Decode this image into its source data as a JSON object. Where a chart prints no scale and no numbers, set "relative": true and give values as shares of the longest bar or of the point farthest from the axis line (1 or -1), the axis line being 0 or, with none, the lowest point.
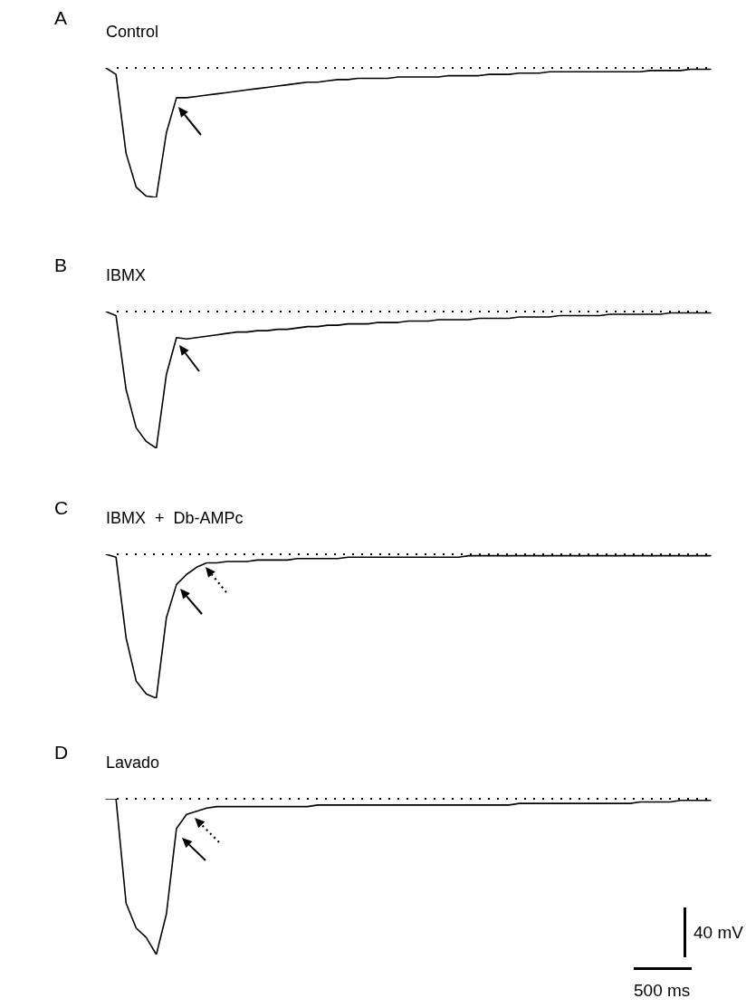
{
  "chart_data": [
    {
      "type": "line",
      "title": "A",
      "subtitle": "Control",
      "relative": true,
      "marker": "none",
      "line_style": "solid",
      "categories": [
        null,
        null,
        null,
        null,
        null,
        null,
        null,
        null,
        null,
        null,
        null,
        null,
        null,
        null,
        null,
        null,
        null,
        null,
        null,
        null,
        null,
        null,
        null,
        null,
        null,
        null,
        null,
        null,
        null,
        null,
        null,
        null,
        null,
        null,
        null,
        null,
        null,
        null,
        null,
        null,
        null,
        null,
        null,
        null,
        null,
        null,
        null,
        null,
        null,
        null,
        null,
        null,
        null,
        null,
        null,
        null,
        null,
        null,
        null,
        null,
        null
      ],
      "series": [
        {
          "color": "#000000",
          "values": [
            0,
            -0.05,
            -0.66,
            -0.92,
            -0.99,
            -1,
            -0.5,
            -0.23,
            -0.23,
            -0.22,
            -0.21,
            -0.2,
            -0.19,
            -0.18,
            -0.17,
            -0.16,
            -0.15,
            -0.14,
            -0.13,
            -0.12,
            -0.11,
            -0.11,
            -0.1,
            -0.09,
            -0.09,
            -0.08,
            -0.08,
            -0.08,
            -0.08,
            -0.07,
            -0.07,
            -0.07,
            -0.07,
            -0.07,
            -0.06,
            -0.06,
            -0.06,
            -0.06,
            -0.05,
            -0.05,
            -0.05,
            -0.04,
            -0.04,
            -0.04,
            -0.03,
            -0.03,
            -0.03,
            -0.03,
            -0.03,
            -0.03,
            -0.03,
            -0.03,
            -0.03,
            -0.03,
            -0.02,
            -0.02,
            -0.02,
            -0.02,
            -0.01,
            -0.01,
            -0.01
          ]
        }
      ],
      "ref_lines": [
        {
          "axis": "y",
          "value": 0,
          "line_style": "dotted",
          "color": "#000000"
        }
      ]
    },
    {
      "type": "line",
      "title": "B",
      "subtitle": "IBMX",
      "relative": true,
      "marker": "none",
      "line_style": "solid",
      "categories": [
        null,
        null,
        null,
        null,
        null,
        null,
        null,
        null,
        null,
        null,
        null,
        null,
        null,
        null,
        null,
        null,
        null,
        null,
        null,
        null,
        null,
        null,
        null,
        null,
        null,
        null,
        null,
        null,
        null,
        null,
        null,
        null,
        null,
        null,
        null,
        null,
        null,
        null,
        null,
        null,
        null,
        null,
        null,
        null,
        null,
        null,
        null,
        null,
        null,
        null,
        null,
        null,
        null,
        null,
        null,
        null,
        null,
        null,
        null,
        null,
        null
      ],
      "series": [
        {
          "color": "#000000",
          "values": [
            0,
            -0.03,
            -0.57,
            -0.85,
            -0.95,
            -1,
            -0.46,
            -0.19,
            -0.2,
            -0.19,
            -0.18,
            -0.17,
            -0.16,
            -0.15,
            -0.15,
            -0.14,
            -0.14,
            -0.13,
            -0.13,
            -0.12,
            -0.11,
            -0.11,
            -0.1,
            -0.1,
            -0.09,
            -0.09,
            -0.09,
            -0.08,
            -0.08,
            -0.08,
            -0.07,
            -0.07,
            -0.07,
            -0.06,
            -0.06,
            -0.06,
            -0.06,
            -0.05,
            -0.05,
            -0.05,
            -0.05,
            -0.04,
            -0.04,
            -0.04,
            -0.04,
            -0.03,
            -0.03,
            -0.03,
            -0.03,
            -0.03,
            -0.02,
            -0.02,
            -0.02,
            -0.02,
            -0.02,
            -0.02,
            -0.01,
            -0.01,
            -0.01,
            -0.01,
            -0.01
          ]
        }
      ],
      "ref_lines": [
        {
          "axis": "y",
          "value": 0,
          "line_style": "dotted",
          "color": "#000000"
        }
      ]
    },
    {
      "type": "line",
      "title": "C",
      "subtitle": "IBMX  +  Db-AMPc",
      "relative": true,
      "marker": "none",
      "line_style": "solid",
      "categories": [
        null,
        null,
        null,
        null,
        null,
        null,
        null,
        null,
        null,
        null,
        null,
        null,
        null,
        null,
        null,
        null,
        null,
        null,
        null,
        null,
        null,
        null,
        null,
        null,
        null,
        null,
        null,
        null,
        null,
        null,
        null,
        null,
        null,
        null,
        null,
        null,
        null,
        null,
        null,
        null,
        null,
        null,
        null,
        null,
        null,
        null,
        null,
        null,
        null,
        null,
        null,
        null,
        null,
        null,
        null,
        null,
        null,
        null,
        null,
        null,
        null
      ],
      "series": [
        {
          "color": "#000000",
          "values": [
            0,
            -0.02,
            -0.58,
            -0.88,
            -0.97,
            -1,
            -0.44,
            -0.21,
            -0.14,
            -0.09,
            -0.06,
            -0.06,
            -0.05,
            -0.05,
            -0.05,
            -0.04,
            -0.04,
            -0.04,
            -0.04,
            -0.03,
            -0.03,
            -0.03,
            -0.03,
            -0.03,
            -0.02,
            -0.02,
            -0.02,
            -0.02,
            -0.02,
            -0.02,
            -0.02,
            -0.02,
            -0.02,
            -0.02,
            -0.02,
            -0.02,
            -0.01,
            -0.01,
            -0.01,
            -0.01,
            -0.01,
            -0.01,
            -0.01,
            -0.01,
            -0.01,
            -0.01,
            -0.01,
            -0.01,
            -0.01,
            -0.01,
            -0.01,
            -0.01,
            -0.01,
            -0.01,
            -0.01,
            -0.01,
            -0.01,
            -0.01,
            -0.01,
            -0.01,
            -0.01
          ]
        }
      ],
      "ref_lines": [
        {
          "axis": "y",
          "value": 0,
          "line_style": "dotted",
          "color": "#000000"
        }
      ]
    },
    {
      "type": "line",
      "title": "D",
      "subtitle": "Lavado",
      "relative": true,
      "marker": "none",
      "line_style": "solid",
      "categories": [
        null,
        null,
        null,
        null,
        null,
        null,
        null,
        null,
        null,
        null,
        null,
        null,
        null,
        null,
        null,
        null,
        null,
        null,
        null,
        null,
        null,
        null,
        null,
        null,
        null,
        null,
        null,
        null,
        null,
        null,
        null,
        null,
        null,
        null,
        null,
        null,
        null,
        null,
        null,
        null,
        null,
        null,
        null,
        null,
        null,
        null,
        null,
        null,
        null,
        null,
        null,
        null,
        null,
        null,
        null,
        null,
        null,
        null,
        null,
        null,
        null
      ],
      "series": [
        {
          "color": "#000000",
          "values": [
            0,
            0,
            -0.67,
            -0.83,
            -0.89,
            -1,
            -0.74,
            -0.19,
            -0.1,
            -0.08,
            -0.06,
            -0.05,
            -0.05,
            -0.05,
            -0.05,
            -0.05,
            -0.05,
            -0.05,
            -0.05,
            -0.05,
            -0.05,
            -0.04,
            -0.04,
            -0.04,
            -0.04,
            -0.04,
            -0.04,
            -0.04,
            -0.04,
            -0.04,
            -0.04,
            -0.04,
            -0.04,
            -0.04,
            -0.04,
            -0.04,
            -0.04,
            -0.04,
            -0.04,
            -0.04,
            -0.04,
            -0.03,
            -0.03,
            -0.03,
            -0.03,
            -0.03,
            -0.03,
            -0.03,
            -0.03,
            -0.03,
            -0.03,
            -0.03,
            -0.03,
            -0.02,
            -0.02,
            -0.02,
            -0.02,
            -0.01,
            -0.01,
            -0.01,
            -0.01
          ]
        }
      ],
      "ref_lines": [
        {
          "axis": "y",
          "value": 0,
          "line_style": "dotted",
          "color": "#000000"
        }
      ],
      "annotations": [
        "40 mV",
        "500 ms"
      ]
    }
  ]
}
